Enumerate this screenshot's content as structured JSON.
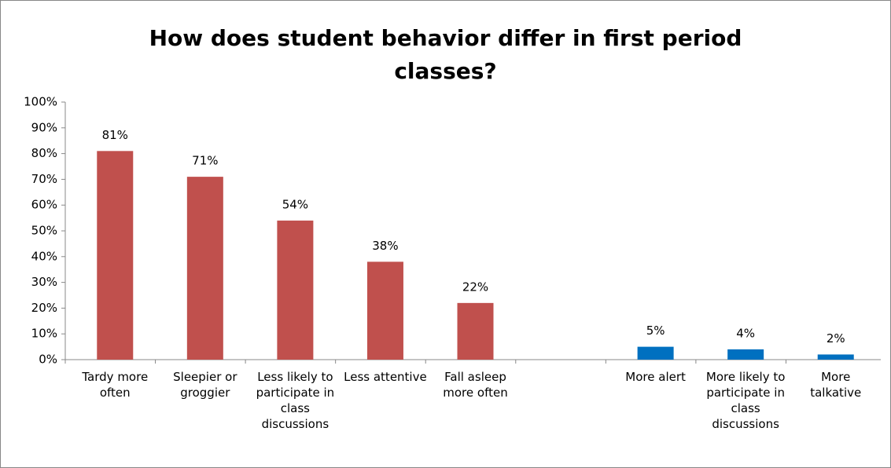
{
  "chart_data": {
    "type": "bar",
    "title": "How does student behavior differ in first period classes?",
    "categories": [
      "Tardy more often",
      "Sleepier or groggier",
      "Less likely to participate in class discussions",
      "Less attentive",
      "Fall asleep more often",
      null,
      "More alert",
      "More likely to participate in class discussions",
      "More talkative"
    ],
    "values": [
      81,
      71,
      54,
      38,
      22,
      null,
      5,
      4,
      2
    ],
    "value_labels": [
      "81%",
      "71%",
      "54%",
      "38%",
      "22%",
      null,
      "5%",
      "4%",
      "2%"
    ],
    "colors": [
      "#c0504d",
      "#c0504d",
      "#c0504d",
      "#c0504d",
      "#c0504d",
      null,
      "#0070c0",
      "#0070c0",
      "#0070c0"
    ],
    "ylim": [
      0,
      100
    ],
    "yticks": [
      {
        "value": 0,
        "label": "0%"
      },
      {
        "value": 10,
        "label": "10%"
      },
      {
        "value": 20,
        "label": "20%"
      },
      {
        "value": 30,
        "label": "30%"
      },
      {
        "value": 40,
        "label": "40%"
      },
      {
        "value": 50,
        "label": "50%"
      },
      {
        "value": 60,
        "label": "60%"
      },
      {
        "value": 70,
        "label": "70%"
      },
      {
        "value": 80,
        "label": "80%"
      },
      {
        "value": 90,
        "label": "90%"
      },
      {
        "value": 100,
        "label": "100%"
      }
    ],
    "grid": false
  }
}
